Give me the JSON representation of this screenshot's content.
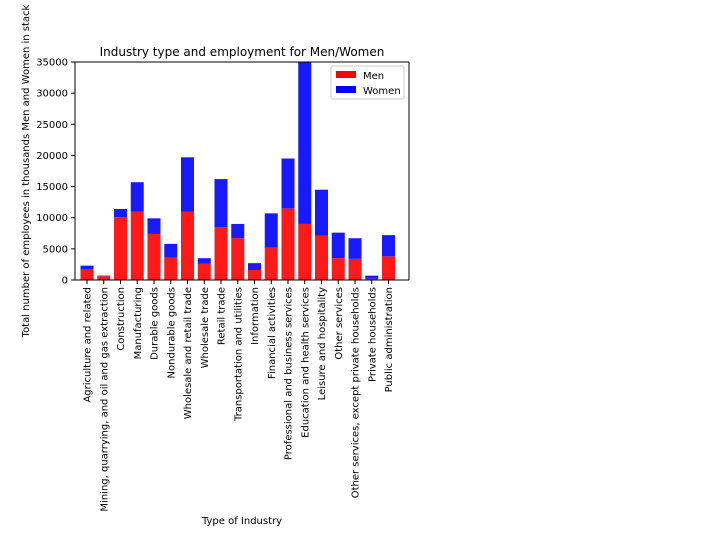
{
  "chart_data": {
    "type": "bar",
    "stacked": true,
    "title": "Industry type and employment for Men/Women",
    "xlabel": "Type of Industry",
    "ylabel": "Total number of employees in thousands Men and Women in stack",
    "ylim": [
      0,
      35000
    ],
    "yticks": [
      "0",
      "5000",
      "10000",
      "15000",
      "20000",
      "25000",
      "30000",
      "35000"
    ],
    "grid": false,
    "legend_position": "top-right",
    "categories": [
      "Agriculture and related",
      "Mining, quarrying, and oil and gas extraction",
      "Construction",
      "Manufacturing",
      "Durable goods",
      "Nondurable goods",
      "Wholesale and retail trade",
      "Wholesale trade",
      "Retail trade",
      "Transportation and utilities",
      "Information",
      "Financial activities",
      "Professional and business services",
      "Education and health services",
      "Leisure and hospitality",
      "Other services",
      "Other services, except private households",
      "Private households",
      "Public administration"
    ],
    "series": [
      {
        "name": "Men",
        "color": "#ff0000",
        "values": [
          1700,
          600,
          10100,
          11000,
          7400,
          3600,
          11000,
          2600,
          8500,
          6700,
          1600,
          5200,
          11500,
          9000,
          7100,
          3500,
          3400,
          200,
          3800
        ]
      },
      {
        "name": "Women",
        "color": "#0000ff",
        "values": [
          600,
          100,
          1300,
          4700,
          2500,
          2200,
          8700,
          900,
          7700,
          2300,
          1100,
          5500,
          8000,
          26000,
          7400,
          4100,
          3300,
          500,
          3400
        ]
      }
    ]
  }
}
